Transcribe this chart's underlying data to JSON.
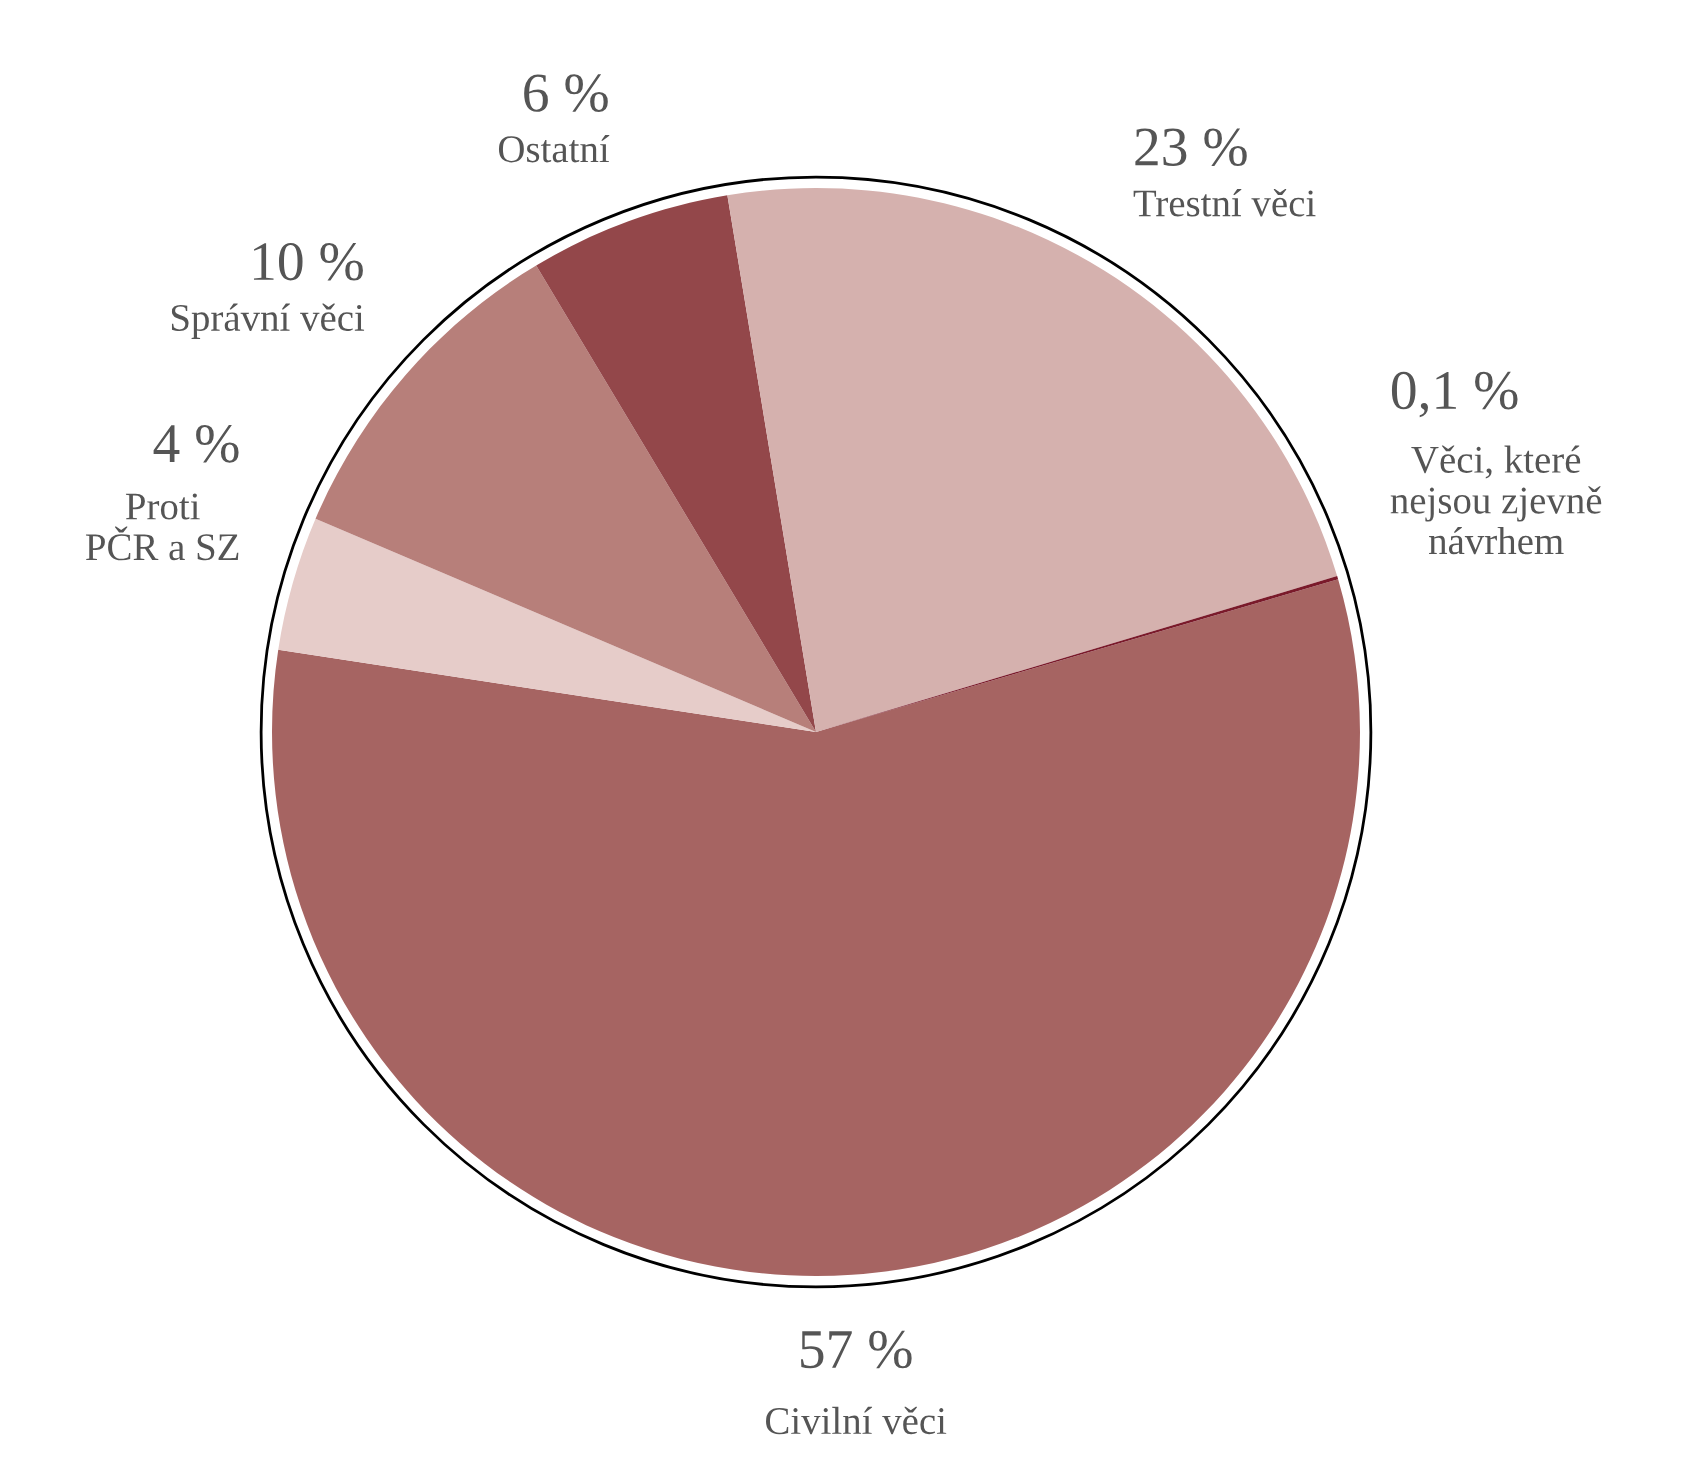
{
  "chart_data": {
    "type": "pie",
    "categories": [
      "Civilní věci",
      "Proti\nPČR a SZ",
      "Správní věci",
      "Ostatní",
      "Trestní věci",
      "Věci, které\nnejsou zjevně\nnávrhem"
    ],
    "values": [
      57,
      4,
      10,
      6,
      23,
      0.1
    ],
    "value_labels": [
      "57 %",
      "4 %",
      "10 %",
      "6 %",
      "23 %",
      "0,1 %"
    ],
    "colors": [
      "#a66462",
      "#e6ccc9",
      "#b77f7a",
      "#93474a",
      "#d5b1ae",
      "#7a1a2a"
    ]
  }
}
